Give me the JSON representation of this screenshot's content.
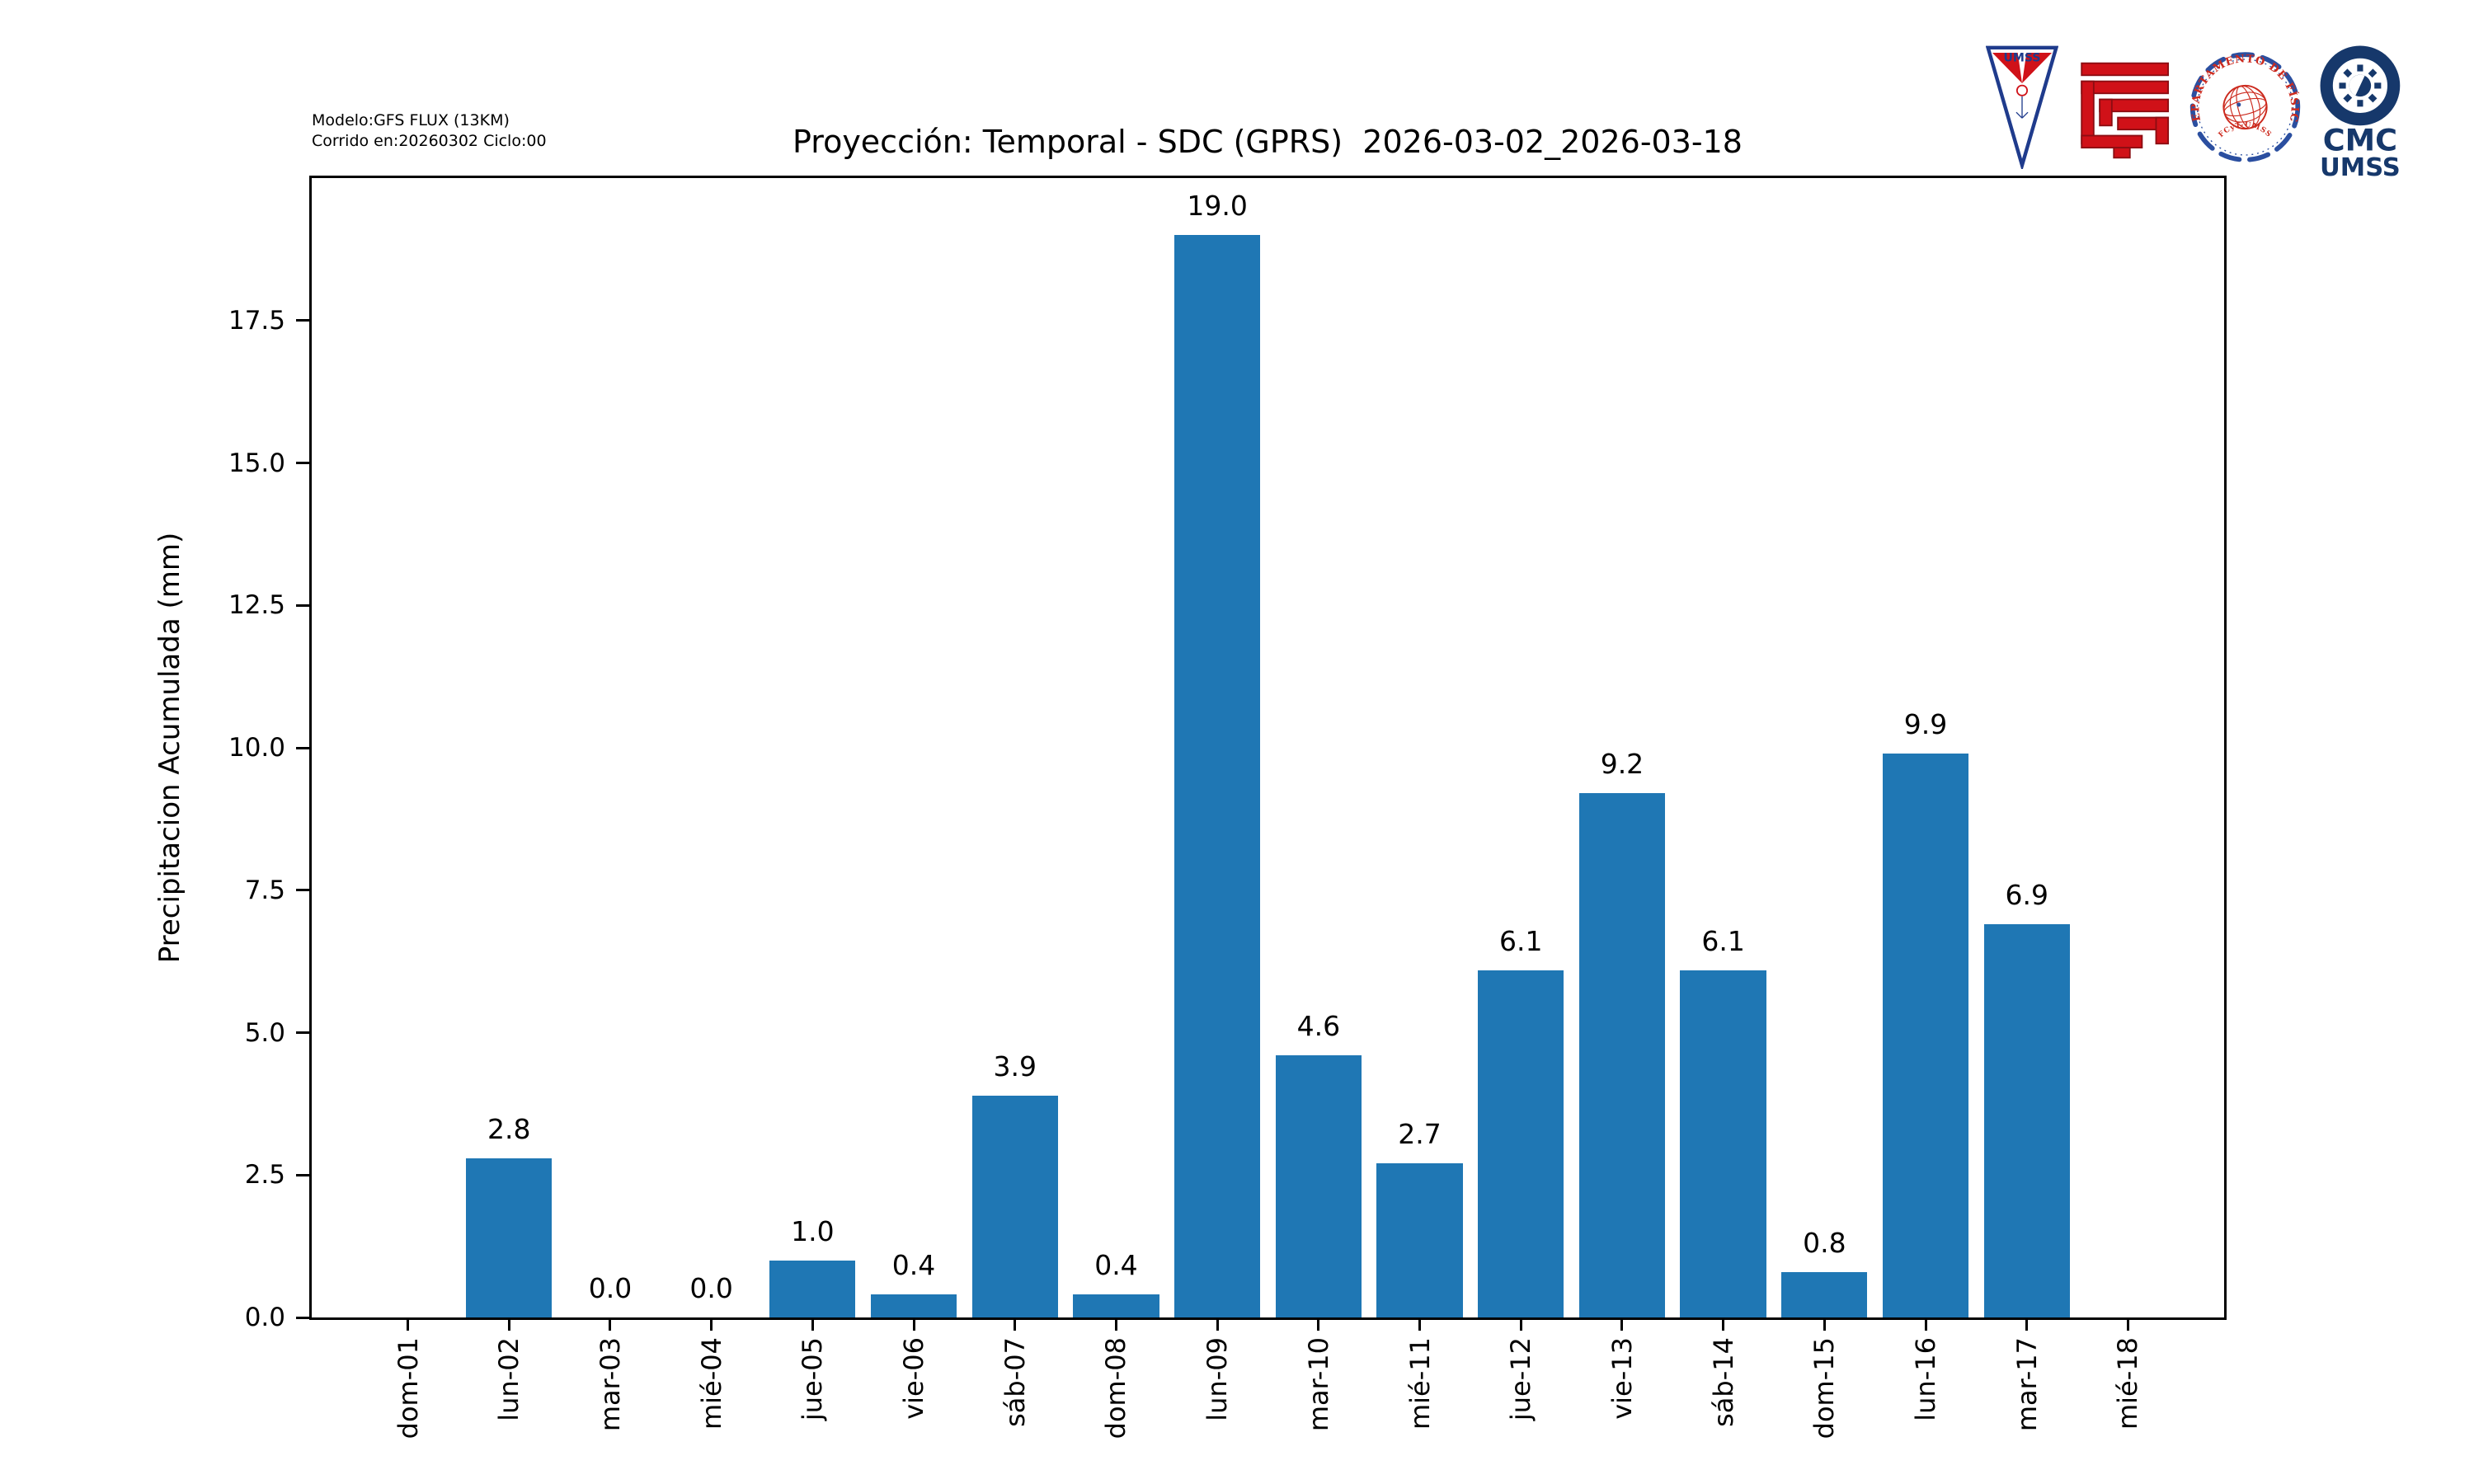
{
  "annotations": {
    "model_line1": "Modelo:GFS FLUX (13KM)",
    "model_line2": "Corrido en:20260302 Ciclo:00"
  },
  "chart_data": {
    "type": "bar",
    "title": "Proyección: Temporal - SDC (GPRS)  2026-03-02_2026-03-18",
    "categories": [
      "dom-01",
      "lun-02",
      "mar-03",
      "mié-04",
      "jue-05",
      "vie-06",
      "sáb-07",
      "dom-08",
      "lun-09",
      "mar-10",
      "mié-11",
      "jue-12",
      "vie-13",
      "sáb-14",
      "dom-15",
      "lun-16",
      "mar-17",
      "mié-18"
    ],
    "values": [
      null,
      2.8,
      0.0,
      0.0,
      1.0,
      0.4,
      3.9,
      0.4,
      19.0,
      4.6,
      2.7,
      6.1,
      9.2,
      6.1,
      0.8,
      9.9,
      6.9,
      null
    ],
    "bar_labels": [
      "",
      "2.8",
      "0.0",
      "0.0",
      "1.0",
      "0.4",
      "3.9",
      "0.4",
      "19.0",
      "4.6",
      "2.7",
      "6.1",
      "9.2",
      "6.1",
      "0.8",
      "9.9",
      "6.9",
      ""
    ],
    "xlabel": "",
    "ylabel": "Precipitacion Acumulada (mm)",
    "ylim": [
      0,
      20
    ],
    "yticks": [
      0.0,
      2.5,
      5.0,
      7.5,
      10.0,
      12.5,
      15.0,
      17.5
    ],
    "ytick_labels": [
      "0.0",
      "2.5",
      "5.0",
      "7.5",
      "10.0",
      "12.5",
      "15.0",
      "17.5"
    ],
    "grid": false,
    "legend": null,
    "bar_color": "#1f77b4"
  },
  "colors": {
    "bar": "#1f77b4",
    "axis": "#000000",
    "logo_red": "#d01118",
    "logo_blue": "#1f3b8c",
    "seal_blue": "#2b4fa0",
    "seal_red": "#cc2a1e",
    "cmc_navy": "#16386b"
  },
  "logos": {
    "umss_pennant": {
      "label": "UMSS"
    },
    "fisica_seal": {
      "ring_text": "DEPARTAMENTO DE FÍSICA",
      "bottom_text": "FCyT-UMSS"
    },
    "cmc": {
      "line1": "CMC",
      "line2": "UMSS"
    }
  }
}
